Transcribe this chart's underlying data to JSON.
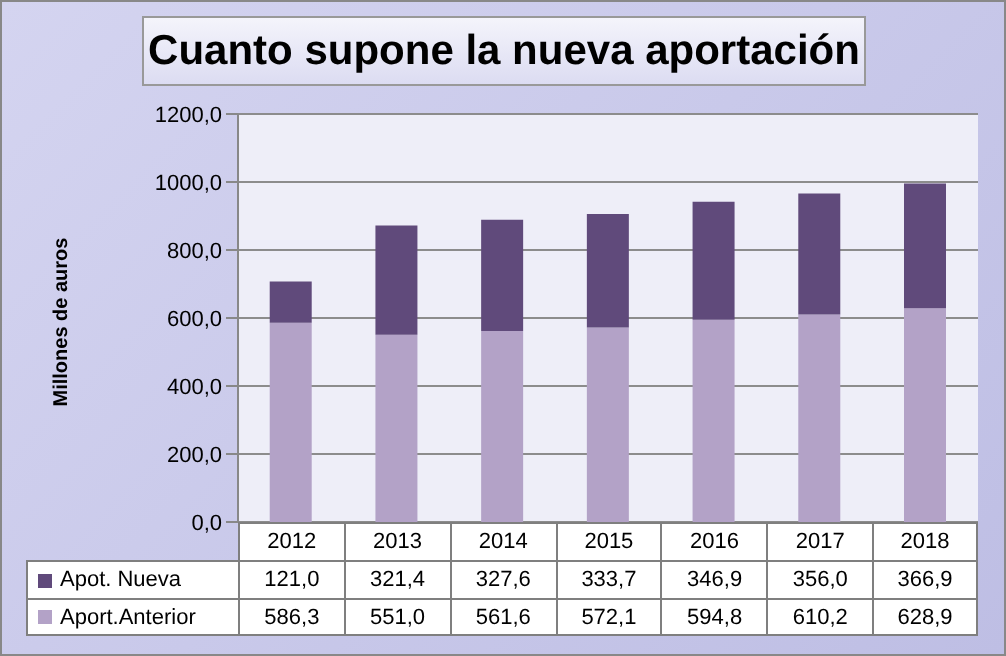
{
  "chart_data": {
    "type": "bar",
    "title": "Cuanto supone la nueva aportación",
    "ylabel": "Millones de auros",
    "categories": [
      "2012",
      "2013",
      "2014",
      "2015",
      "2016",
      "2017",
      "2018"
    ],
    "stacked": true,
    "series": [
      {
        "name": "Aport.Anterior",
        "color": "#b3a2c7",
        "values": [
          586.3,
          551.0,
          561.6,
          572.1,
          594.8,
          610.2,
          628.9
        ],
        "value_labels": [
          "586,3",
          "551,0",
          "561,6",
          "572,1",
          "594,8",
          "610,2",
          "628,9"
        ]
      },
      {
        "name": "Apot. Nueva",
        "color": "#604a7b",
        "values": [
          121.0,
          321.4,
          327.6,
          333.7,
          346.9,
          356.0,
          366.9
        ],
        "value_labels": [
          "121,0",
          "321,4",
          "327,6",
          "333,7",
          "346,9",
          "356,0",
          "366,9"
        ]
      }
    ],
    "ylim": [
      0,
      1200
    ],
    "yticks": [
      {
        "value": 0,
        "label": "0,0"
      },
      {
        "value": 200,
        "label": "200,0"
      },
      {
        "value": 400,
        "label": "400,0"
      },
      {
        "value": 600,
        "label": "600,0"
      },
      {
        "value": 800,
        "label": "800,0"
      },
      {
        "value": 1000,
        "label": "1000,0"
      },
      {
        "value": 1200,
        "label": "1200,0"
      }
    ],
    "grid": "y",
    "legend": "bottom"
  }
}
